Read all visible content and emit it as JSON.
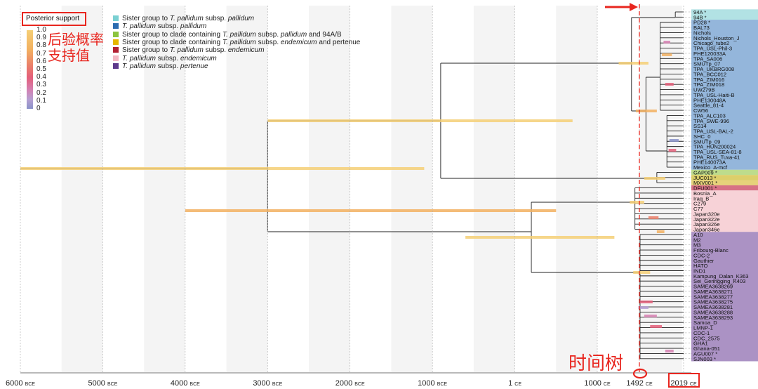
{
  "posterior_legend": {
    "title": "Posterior support",
    "ticks": [
      "1.0",
      "0.9",
      "0.8",
      "0.7",
      "0.6",
      "0.5",
      "0.4",
      "0.3",
      "0.2",
      "0.1",
      "0"
    ],
    "annotation_line1": "后验概率",
    "annotation_line2": "支持值",
    "gradient": [
      "#f5cf76",
      "#f2b060",
      "#ea7f6a",
      "#e45f7a",
      "#d57fb0",
      "#b69fd2",
      "#8a93c9"
    ]
  },
  "groups_legend": [
    {
      "color": "#7ad0d2",
      "prefix": "Sister group to ",
      "italic": "T. pallidum",
      "suffix": " subsp. ",
      "italic2": "pallidum",
      "tail": ""
    },
    {
      "color": "#2c6cb0",
      "prefix": "",
      "italic": "T. pallidum",
      "suffix": " subsp. ",
      "italic2": "pallidum",
      "tail": ""
    },
    {
      "color": "#8cc43f",
      "prefix": "Sister group to clade containing ",
      "italic": "T. pallidum",
      "suffix": " subsp. ",
      "italic2": "pallidum",
      "tail": " and 94A/B"
    },
    {
      "color": "#e6b800",
      "prefix": "Sister group to clade containing ",
      "italic": "T. pallidum",
      "suffix": " subsp. ",
      "italic2": "endemicum",
      "tail": " and pertenue"
    },
    {
      "color": "#b22234",
      "prefix": "Sister group to ",
      "italic": "T. pallidum",
      "suffix": " subsp. ",
      "italic2": "endemicum",
      "tail": ""
    },
    {
      "color": "#f4b9c4",
      "prefix": "",
      "italic": "T. pallidum",
      "suffix": " subsp. ",
      "italic2": "endemicum",
      "tail": ""
    },
    {
      "color": "#5e3a8c",
      "prefix": "",
      "italic": "T. pallidum",
      "suffix": " subsp. ",
      "italic2": "pertenue",
      "tail": ""
    }
  ],
  "taxa": [
    "94A *",
    "94B *",
    "PD28 *",
    "BAL73",
    "Nichols",
    "Nichols_Houston_J",
    "Chicago_tube2",
    "TPA_USL-Phil-3",
    "PHE120033A",
    "TPA_SA006",
    "SMUTp_07",
    "TPA_UKBRG008",
    "TPA_BCC012",
    "TPA_ZIM016",
    "TPA_ZIM018",
    "UW279B",
    "TPA_USL-Haiti-B",
    "PHE130048A",
    "Seattle_81-4",
    "CW56",
    "TPA_ALC103",
    "TPA_SWE-996",
    "SS14",
    "TPA_USL-BAL-2",
    "SHC_0",
    "SMUTp_09",
    "TPA_HUN200024",
    "TPA_USL-SEA-81-8",
    "TPA_RUS_Tuva-41",
    "PHE140073A",
    "Mexico_A-mcf",
    "GAP009 *",
    "JUC013 *",
    "MXV001 *",
    "DFU001 *",
    "Bosnia_A",
    "Iraq_B",
    "C279",
    "C77",
    "Japan320e",
    "Japan322e",
    "Japan326e",
    "Japan346e",
    "A10",
    "M2",
    "M3",
    "Fribourg-Blanc",
    "CDC-2",
    "Gauthier",
    "HATO",
    "IND1",
    "Kampung_Dalan_K363",
    "Sei_Geringging_K403",
    "SAMEA3638269",
    "SAMEA3638271",
    "SAMEA3638277",
    "SAMEA3638275",
    "SAMEA3638281",
    "SAMEA3638288",
    "SAMEA3638293",
    "Samoa_D",
    "LMNP-1",
    "CDC-1",
    "CDC_2575",
    "GHA1",
    "Ghana-051",
    "AGU007 *",
    "SJN003 *"
  ],
  "clade_bands": [
    {
      "from": 0,
      "to": 1,
      "color": "#b2e2e4"
    },
    {
      "from": 2,
      "to": 30,
      "color": "#94b6db"
    },
    {
      "from": 31,
      "to": 31,
      "color": "#bddc8c"
    },
    {
      "from": 32,
      "to": 32,
      "color": "#dccf6a"
    },
    {
      "from": 33,
      "to": 33,
      "color": "#e6d27a"
    },
    {
      "from": 34,
      "to": 34,
      "color": "#d77185"
    },
    {
      "from": 35,
      "to": 42,
      "color": "#f7d2d7"
    },
    {
      "from": 43,
      "to": 67,
      "color": "#ab92c4"
    }
  ],
  "axis": {
    "labels": [
      {
        "year": -6000,
        "num": "6000",
        "era": "BCE"
      },
      {
        "year": -5000,
        "num": "5000",
        "era": "BCE"
      },
      {
        "year": -4000,
        "num": "4000",
        "era": "BCE"
      },
      {
        "year": -3000,
        "num": "3000",
        "era": "BCE"
      },
      {
        "year": -2000,
        "num": "2000",
        "era": "BCE"
      },
      {
        "year": -1000,
        "num": "1000",
        "era": "BCE"
      },
      {
        "year": 0,
        "num": "1",
        "era": "CE"
      },
      {
        "year": 1000,
        "num": "1000",
        "era": "CE"
      },
      {
        "year": 1492,
        "num": "1492",
        "era": "CE"
      },
      {
        "year": 2019,
        "num": "2019",
        "era": "CE"
      }
    ],
    "marker_year": 1492,
    "time_tree_label": "时间树"
  }
}
